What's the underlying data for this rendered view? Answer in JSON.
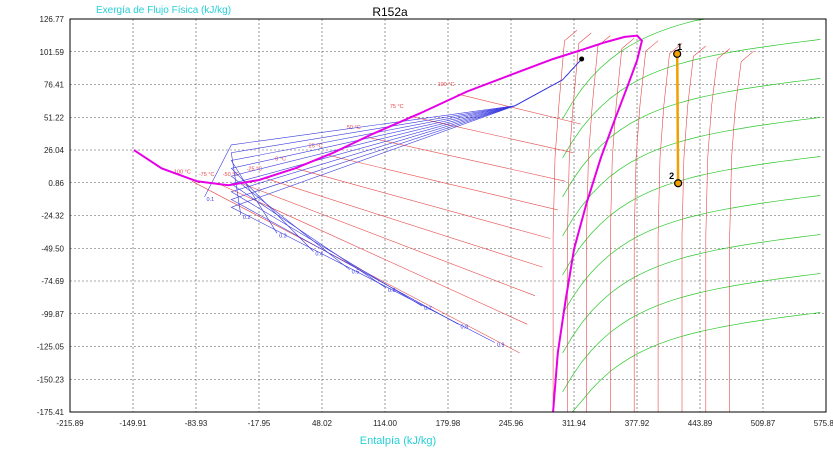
{
  "chart_data": {
    "type": "line",
    "title": "R152a",
    "ylabel": "Exergía de Flujo Física  (kJ/kg)",
    "xlabel": "Entalpía (kJ/kg)",
    "xlim": [
      -215.89,
      575.85
    ],
    "ylim": [
      -175.41,
      126.77
    ],
    "x_ticks": [
      "-215.89",
      "-149.91",
      "-83.93",
      "-17.95",
      "48.02",
      "114.00",
      "179.98",
      "245.96",
      "311.94",
      "377.92",
      "443.89",
      "509.87",
      "575.85"
    ],
    "y_ticks": [
      "126.77",
      "101.59",
      "76.41",
      "51.22",
      "26.04",
      "0.86",
      "-24.32",
      "-49.50",
      "-74.69",
      "-99.87",
      "-125.05",
      "-150.23",
      "-175.41"
    ],
    "grid": true,
    "colors": {
      "saturation": "#e600e6",
      "isotherm": "#e84848",
      "isobar": "#2cc82c",
      "quality": "#3a3ae0",
      "process": "#f0a000",
      "point_fill": "#f0a000"
    },
    "saturation_dome": [
      [
        -149,
        26
      ],
      [
        -120,
        12
      ],
      [
        -83,
        2
      ],
      [
        -50,
        -1
      ],
      [
        -18,
        3
      ],
      [
        20,
        12
      ],
      [
        60,
        24
      ],
      [
        100,
        38
      ],
      [
        150,
        54
      ],
      [
        200,
        71
      ],
      [
        250,
        85
      ],
      [
        290,
        96
      ],
      [
        320,
        103
      ],
      [
        345,
        109
      ],
      [
        365,
        113
      ],
      [
        378,
        114
      ],
      [
        383,
        110
      ],
      [
        378,
        95
      ],
      [
        368,
        75
      ],
      [
        355,
        50
      ],
      [
        340,
        20
      ],
      [
        325,
        -15
      ],
      [
        312,
        -50
      ],
      [
        303,
        -90
      ],
      [
        295,
        -130
      ],
      [
        290,
        -175
      ]
    ],
    "isotherm_labels": [
      "-100 °C",
      "-75 °C",
      "-50 °C",
      "-25 °C",
      "0 °C",
      "25 °C",
      "50 °C",
      "75 °C",
      "100 °C"
    ],
    "quality_labels": [
      "0.1",
      "0.2",
      "0.3",
      "0.4",
      "0.5",
      "0.6",
      "0.7",
      "0.8",
      "0.9"
    ],
    "critical_point": [
      320,
      96
    ],
    "process": {
      "points": [
        {
          "label": "1",
          "h": 420,
          "e": 100
        },
        {
          "label": "2",
          "h": 421,
          "e": 0.5
        }
      ]
    }
  }
}
